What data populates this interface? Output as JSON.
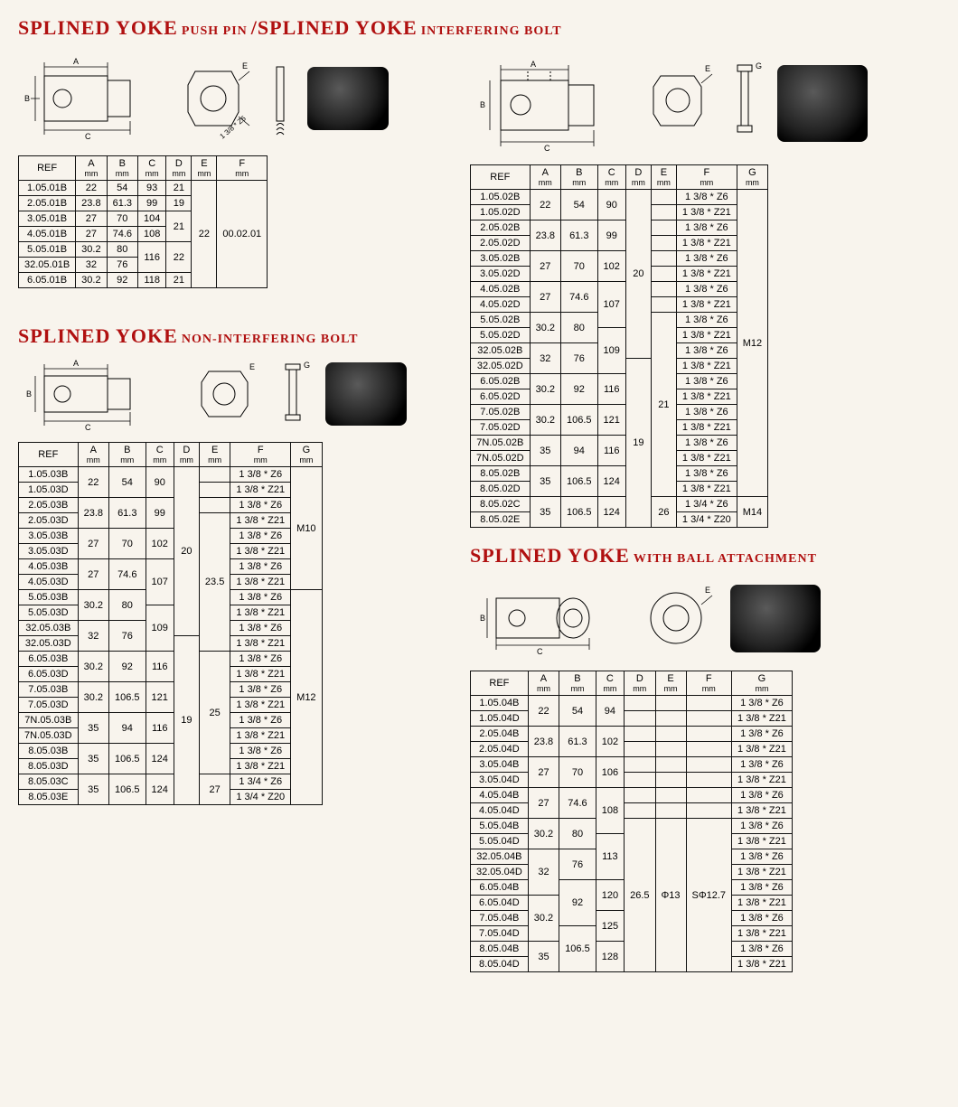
{
  "section1": {
    "title_big1": "SPLINED YOKE",
    "title_sm1": "PUSH PIN",
    "sep": "/",
    "title_big2": "SPLINED YOKE",
    "title_sm2": "INTERFERING BOLT",
    "cols": [
      "REF",
      "A",
      "B",
      "C",
      "D",
      "E",
      "F"
    ],
    "units": [
      "",
      "mm",
      "mm",
      "mm",
      "mm",
      "mm",
      "mm"
    ],
    "rows": [
      [
        "1.05.01B",
        "22",
        "54",
        "93",
        "21",
        "22",
        "00.02.01"
      ],
      [
        "2.05.01B",
        "23.8",
        "61.3",
        "99",
        "19",
        "",
        ""
      ],
      [
        "3.05.01B",
        "27",
        "70",
        "104",
        "21",
        "",
        ""
      ],
      [
        "4.05.01B",
        "27",
        "74.6",
        "108",
        "",
        "",
        ""
      ],
      [
        "5.05.01B",
        "30.2",
        "80",
        "116",
        "22",
        "",
        ""
      ],
      [
        "32.05.01B",
        "32",
        "76",
        "",
        "",
        "",
        ""
      ],
      [
        "6.05.01B",
        "30.2",
        "92",
        "118",
        "21",
        "",
        ""
      ]
    ]
  },
  "section2": {
    "title_big": "SPLINED YOKE",
    "title_sm": "INTERFERING BOLT",
    "cols": [
      "REF",
      "A",
      "B",
      "C",
      "D",
      "E",
      "F",
      "G"
    ],
    "units": [
      "",
      "mm",
      "mm",
      "mm",
      "mm",
      "mm",
      "mm",
      "mm"
    ],
    "rows": [
      [
        "1.05.02B",
        "22",
        "54",
        "90",
        "20",
        "",
        "1 3/8 * Z6",
        "M12"
      ],
      [
        "1.05.02D",
        "",
        "",
        "",
        "",
        "",
        "1 3/8 * Z21",
        ""
      ],
      [
        "2.05.02B",
        "23.8",
        "61.3",
        "99",
        "",
        "",
        "1 3/8 * Z6",
        ""
      ],
      [
        "2.05.02D",
        "",
        "",
        "",
        "",
        "",
        "1 3/8 * Z21",
        ""
      ],
      [
        "3.05.02B",
        "27",
        "70",
        "102",
        "",
        "",
        "1 3/8 * Z6",
        ""
      ],
      [
        "3.05.02D",
        "",
        "",
        "",
        "",
        "",
        "1 3/8 * Z21",
        ""
      ],
      [
        "4.05.02B",
        "27",
        "74.6",
        "107",
        "",
        "",
        "1 3/8 * Z6",
        ""
      ],
      [
        "4.05.02D",
        "",
        "",
        "",
        "",
        "",
        "1 3/8 * Z21",
        ""
      ],
      [
        "5.05.02B",
        "30.2",
        "80",
        "",
        "",
        "21",
        "1 3/8 * Z6",
        ""
      ],
      [
        "5.05.02D",
        "",
        "",
        "109",
        "",
        "",
        "1 3/8 * Z21",
        ""
      ],
      [
        "32.05.02B",
        "32",
        "76",
        "",
        "",
        "",
        "1 3/8 * Z6",
        ""
      ],
      [
        "32.05.02D",
        "",
        "",
        "",
        "19",
        "",
        "1 3/8 * Z21",
        ""
      ],
      [
        "6.05.02B",
        "30.2",
        "92",
        "116",
        "",
        "",
        "1 3/8 * Z6",
        ""
      ],
      [
        "6.05.02D",
        "",
        "",
        "",
        "",
        "",
        "1 3/8 * Z21",
        ""
      ],
      [
        "7.05.02B",
        "30.2",
        "106.5",
        "121",
        "",
        "",
        "1 3/8 * Z6",
        ""
      ],
      [
        "7.05.02D",
        "",
        "",
        "",
        "",
        "",
        "1 3/8 * Z21",
        ""
      ],
      [
        "7N.05.02B",
        "35",
        "94",
        "116",
        "",
        "",
        "1 3/8 * Z6",
        ""
      ],
      [
        "7N.05.02D",
        "",
        "",
        "",
        "",
        "",
        "1 3/8 * Z21",
        ""
      ],
      [
        "8.05.02B",
        "35",
        "106.5",
        "124",
        "",
        "",
        "1 3/8 * Z6",
        ""
      ],
      [
        "8.05.02D",
        "",
        "",
        "",
        "",
        "",
        "1 3/8 * Z21",
        ""
      ],
      [
        "8.05.02C",
        "35",
        "106.5",
        "124",
        "",
        "26",
        "1 3/4 * Z6",
        "M14"
      ],
      [
        "8.05.02E",
        "",
        "",
        "",
        "",
        "",
        "1 3/4 * Z20",
        ""
      ]
    ]
  },
  "section3": {
    "title_big": "SPLINED YOKE",
    "title_sm": "NON-INTERFERING BOLT",
    "cols": [
      "REF",
      "A",
      "B",
      "C",
      "D",
      "E",
      "F",
      "G"
    ],
    "units": [
      "",
      "mm",
      "mm",
      "mm",
      "mm",
      "mm",
      "mm",
      "mm"
    ],
    "rows": [
      [
        "1.05.03B",
        "22",
        "54",
        "90",
        "20",
        "",
        "1 3/8 * Z6",
        "M10"
      ],
      [
        "1.05.03D",
        "",
        "",
        "",
        "",
        "",
        "1 3/8 * Z21",
        ""
      ],
      [
        "2.05.03B",
        "23.8",
        "61.3",
        "99",
        "",
        "",
        "1 3/8 * Z6",
        ""
      ],
      [
        "2.05.03D",
        "",
        "",
        "",
        "",
        "23.5",
        "1 3/8 * Z21",
        ""
      ],
      [
        "3.05.03B",
        "27",
        "70",
        "102",
        "",
        "",
        "1 3/8 * Z6",
        ""
      ],
      [
        "3.05.03D",
        "",
        "",
        "",
        "",
        "",
        "1 3/8 * Z21",
        ""
      ],
      [
        "4.05.03B",
        "27",
        "74.6",
        "107",
        "",
        "",
        "1 3/8 * Z6",
        ""
      ],
      [
        "4.05.03D",
        "",
        "",
        "",
        "",
        "",
        "1 3/8 * Z21",
        ""
      ],
      [
        "5.05.03B",
        "30.2",
        "80",
        "",
        "",
        "",
        "1 3/8 * Z6",
        "M12"
      ],
      [
        "5.05.03D",
        "",
        "",
        "109",
        "",
        "",
        "1 3/8 * Z21",
        ""
      ],
      [
        "32.05.03B",
        "32",
        "76",
        "",
        "",
        "",
        "1 3/8 * Z6",
        ""
      ],
      [
        "32.05.03D",
        "",
        "",
        "",
        "19",
        "",
        "1 3/8 * Z21",
        ""
      ],
      [
        "6.05.03B",
        "30.2",
        "92",
        "116",
        "",
        "25",
        "1 3/8 * Z6",
        ""
      ],
      [
        "6.05.03D",
        "",
        "",
        "",
        "",
        "",
        "1 3/8 * Z21",
        ""
      ],
      [
        "7.05.03B",
        "30.2",
        "106.5",
        "121",
        "",
        "",
        "1 3/8 * Z6",
        ""
      ],
      [
        "7.05.03D",
        "",
        "",
        "",
        "",
        "",
        "1 3/8 * Z21",
        ""
      ],
      [
        "7N.05.03B",
        "35",
        "94",
        "116",
        "",
        "",
        "1 3/8 * Z6",
        ""
      ],
      [
        "7N.05.03D",
        "",
        "",
        "",
        "",
        "",
        "1 3/8 * Z21",
        ""
      ],
      [
        "8.05.03B",
        "35",
        "106.5",
        "124",
        "",
        "",
        "1 3/8 * Z6",
        ""
      ],
      [
        "8.05.03D",
        "",
        "",
        "",
        "",
        "",
        "1 3/8 * Z21",
        ""
      ],
      [
        "8.05.03C",
        "35",
        "106.5",
        "124",
        "",
        "27",
        "1 3/4 * Z6",
        ""
      ],
      [
        "8.05.03E",
        "",
        "",
        "",
        "",
        "",
        "1 3/4 * Z20",
        ""
      ]
    ]
  },
  "section4": {
    "title_big": "SPLINED YOKE",
    "title_sm": "WITH BALL ATTACHMENT",
    "cols": [
      "REF",
      "A",
      "B",
      "C",
      "D",
      "E",
      "F",
      "G"
    ],
    "units": [
      "",
      "mm",
      "mm",
      "mm",
      "mm",
      "mm",
      "mm",
      "mm"
    ],
    "rows": [
      [
        "1.05.04B",
        "22",
        "54",
        "94",
        "",
        "",
        "",
        "1 3/8 * Z6"
      ],
      [
        "1.05.04D",
        "",
        "",
        "",
        "",
        "",
        "",
        "1 3/8 * Z21"
      ],
      [
        "2.05.04B",
        "23.8",
        "61.3",
        "102",
        "",
        "",
        "",
        "1 3/8 * Z6"
      ],
      [
        "2.05.04D",
        "",
        "",
        "",
        "",
        "",
        "",
        "1 3/8 * Z21"
      ],
      [
        "3.05.04B",
        "27",
        "70",
        "106",
        "",
        "",
        "",
        "1 3/8 * Z6"
      ],
      [
        "3.05.04D",
        "",
        "",
        "",
        "",
        "",
        "",
        "1 3/8 * Z21"
      ],
      [
        "4.05.04B",
        "27",
        "74.6",
        "108",
        "",
        "",
        "",
        "1 3/8 * Z6"
      ],
      [
        "4.05.04D",
        "",
        "",
        "",
        "",
        "",
        "",
        "1 3/8 * Z21"
      ],
      [
        "5.05.04B",
        "30.2",
        "80",
        "",
        "26.5",
        "Φ13",
        "SΦ12.7",
        "1 3/8 * Z6"
      ],
      [
        "5.05.04D",
        "",
        "",
        "113",
        "",
        "",
        "",
        "1 3/8 * Z21"
      ],
      [
        "32.05.04B",
        "32",
        "76",
        "",
        "",
        "",
        "",
        "1 3/8 * Z6"
      ],
      [
        "32.05.04D",
        "",
        "",
        "",
        "",
        "",
        "",
        "1 3/8 * Z21"
      ],
      [
        "6.05.04B",
        "",
        "92",
        "120",
        "",
        "",
        "",
        "1 3/8 * Z6"
      ],
      [
        "6.05.04D",
        "30.2",
        "",
        "",
        "",
        "",
        "",
        "1 3/8 * Z21"
      ],
      [
        "7.05.04B",
        "",
        "",
        "125",
        "",
        "",
        "",
        "1 3/8 * Z6"
      ],
      [
        "7.05.04D",
        "",
        "106.5",
        "",
        "",
        "",
        "",
        "1 3/8 * Z21"
      ],
      [
        "8.05.04B",
        "35",
        "",
        "128",
        "",
        "",
        "",
        "1 3/8 * Z6"
      ],
      [
        "8.05.04D",
        "",
        "",
        "",
        "",
        "",
        "",
        "1 3/8 * Z21"
      ]
    ]
  }
}
